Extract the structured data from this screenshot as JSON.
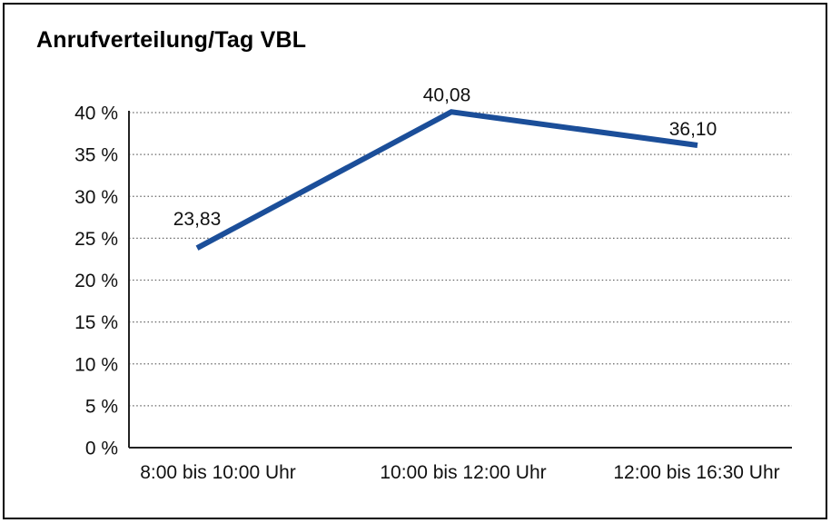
{
  "window": {
    "background_color": "#ffffff",
    "border_color": "#000000"
  },
  "chart": {
    "title": "Anrufverteilung/Tag VBL"
  },
  "chart_data": {
    "type": "line",
    "title": "Anrufverteilung/Tag VBL",
    "categories": [
      "8:00 bis 10:00 Uhr",
      "10:00 bis 12:00 Uhr",
      "12:00 bis 16:30 Uhr"
    ],
    "series": [
      {
        "name": "Anrufverteilung",
        "values": [
          23.83,
          40.08,
          36.1
        ],
        "value_labels": [
          "23,83",
          "40,08",
          "36,10"
        ]
      }
    ],
    "xlabel": "",
    "ylabel": "",
    "ylim": [
      0,
      40
    ],
    "ytick_step": 5,
    "ytick_labels": [
      "0 %",
      "5 %",
      "10 %",
      "15 %",
      "20 %",
      "25 %",
      "30 %",
      "35 %",
      "40 %"
    ],
    "grid": "horizontal-dotted",
    "legend": "none",
    "colors": {
      "line": "#1b4e99",
      "axis": "#222222",
      "gridline": "#666666",
      "text": "#111111"
    }
  }
}
